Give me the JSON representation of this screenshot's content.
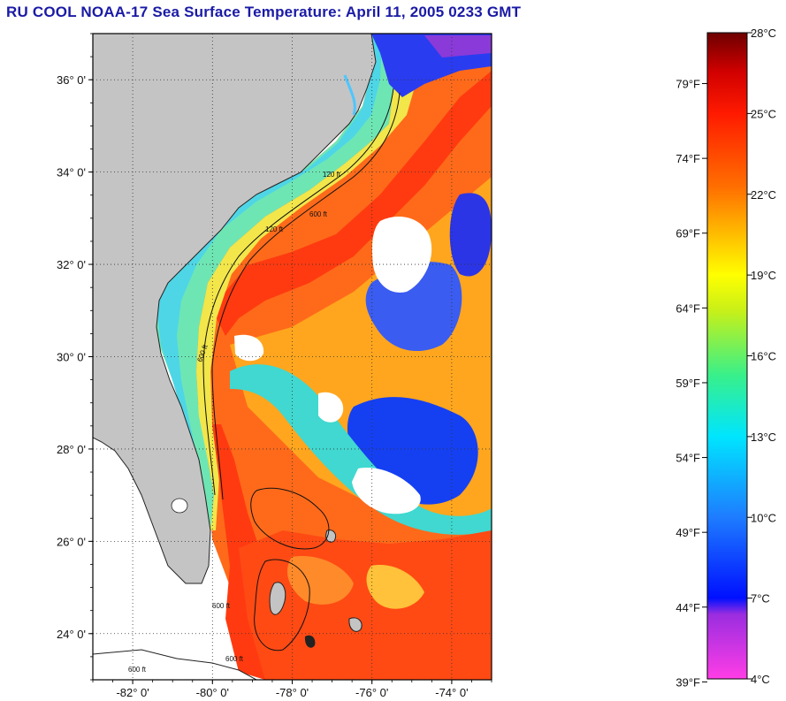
{
  "title": "RU COOL  NOAA-17  Sea Surface Temperature:  April 11, 2005 0233 GMT",
  "map": {
    "lat_labels": [
      "36° 0'",
      "34° 0'",
      "32° 0'",
      "30° 0'",
      "28° 0'",
      "26° 0'",
      "24° 0'"
    ],
    "lat_values": [
      36,
      34,
      32,
      30,
      28,
      26,
      24
    ],
    "lon_labels": [
      "-82° 0'",
      "-80° 0'",
      "-78° 0'",
      "-76° 0'",
      "-74° 0'"
    ],
    "lon_values": [
      -82,
      -80,
      -78,
      -76,
      -74
    ],
    "lat_range": [
      23,
      37
    ],
    "lon_range": [
      -83,
      -73
    ],
    "grid": "dotted",
    "isobath_labels": [
      "120 ft",
      "600 ft"
    ]
  },
  "colorbar": {
    "fahrenheit_labels": [
      "79°F",
      "74°F",
      "69°F",
      "64°F",
      "59°F",
      "54°F",
      "49°F",
      "44°F",
      "39°F"
    ],
    "celsius_labels": [
      "28°C",
      "25°C",
      "22°C",
      "19°C",
      "16°C",
      "13°C",
      "10°C",
      "7°C",
      "4°C"
    ],
    "celsius_values": [
      28,
      25,
      22,
      19,
      16,
      13,
      10,
      7,
      4
    ],
    "range_c": [
      4,
      28
    ],
    "colors": [
      "#ff3de6",
      "#7a2bd6",
      "#0010ff",
      "#1e8cff",
      "#00e5ff",
      "#38f08a",
      "#c8f018",
      "#ffff00",
      "#ffb000",
      "#ff6a00",
      "#ff1a00",
      "#d00000",
      "#7a0000"
    ]
  }
}
